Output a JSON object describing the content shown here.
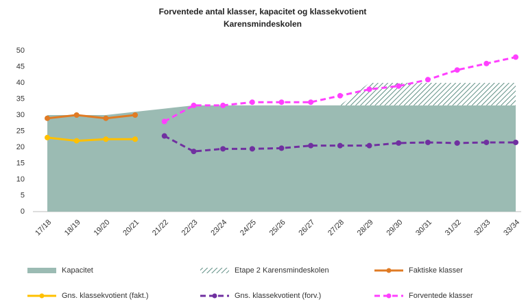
{
  "chart_data": {
    "type": "line",
    "title": "Forventede antal klasser, kapacitet og klassekvotient",
    "subtitle": "Karensmindeskolen",
    "categories": [
      "17/18",
      "18/19",
      "19/20",
      "20/21",
      "21/22",
      "22/23",
      "23/24",
      "24/25",
      "25/26",
      "26/27",
      "27/28",
      "28/29",
      "29/30",
      "30/31",
      "31/32",
      "32/33",
      "33/34"
    ],
    "ylim": [
      0,
      50
    ],
    "yticks": [
      0,
      5,
      10,
      15,
      20,
      25,
      30,
      35,
      40,
      45,
      50
    ],
    "series": [
      {
        "name": "Kapacitet",
        "color": "#9bbbb3",
        "style": "area",
        "values": [
          30,
          30,
          30,
          31,
          32,
          33,
          33,
          33,
          33,
          33,
          33,
          33,
          33,
          33,
          33,
          33,
          33
        ]
      },
      {
        "name": "Etape 2 Karensmindeskolen",
        "color": "#9bbbb3",
        "style": "hatch",
        "values": [
          null,
          null,
          null,
          null,
          null,
          null,
          null,
          null,
          null,
          null,
          0,
          7,
          7,
          7,
          7,
          7,
          7
        ]
      },
      {
        "name": "Faktiske klasser",
        "color": "#e07b24",
        "style": "line",
        "values": [
          29,
          30,
          29,
          30,
          null,
          null,
          null,
          null,
          null,
          null,
          null,
          null,
          null,
          null,
          null,
          null,
          null
        ]
      },
      {
        "name": "Gns. klassekvotient (fakt.)",
        "color": "#ffc000",
        "style": "line",
        "values": [
          23,
          22,
          22.5,
          22.5,
          null,
          null,
          null,
          null,
          null,
          null,
          null,
          null,
          null,
          null,
          null,
          null,
          null
        ]
      },
      {
        "name": "Gns. klassekvotient (forv.)",
        "color": "#7030a0",
        "style": "dashed",
        "values": [
          null,
          null,
          null,
          null,
          23.5,
          18.7,
          19.5,
          19.5,
          19.7,
          20.5,
          20.5,
          20.5,
          21.3,
          21.5,
          21.3,
          21.5,
          21.5
        ]
      },
      {
        "name": "Forventede klasser",
        "color": "#ff40ff",
        "style": "dashed",
        "values": [
          null,
          null,
          null,
          null,
          28,
          33,
          33,
          34,
          34,
          34,
          36,
          38,
          39,
          41,
          44,
          46,
          48
        ]
      }
    ]
  }
}
